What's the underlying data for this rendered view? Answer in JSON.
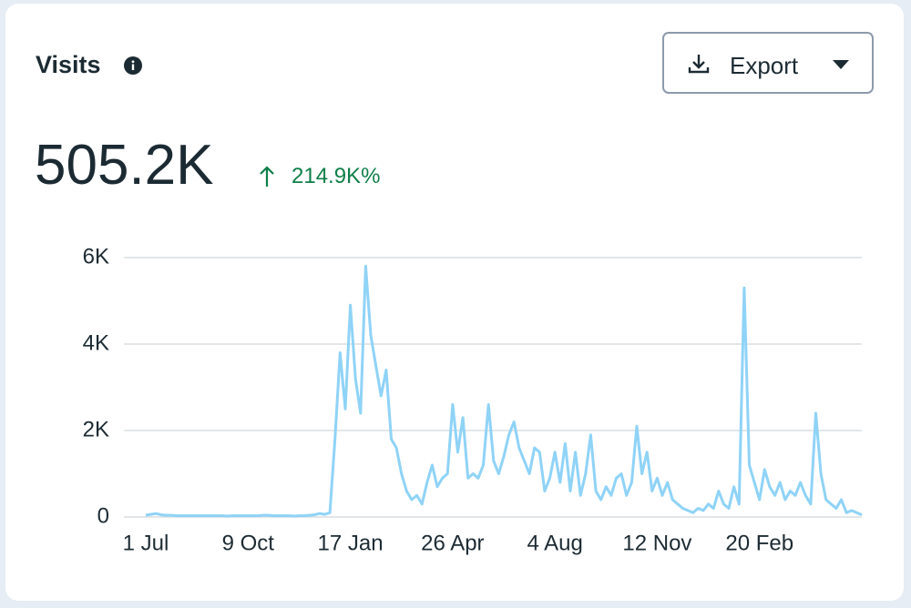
{
  "header": {
    "title": "Visits",
    "button": "Export"
  },
  "summary": {
    "total": "505.2K",
    "change": "214.9K%"
  },
  "chart_data": {
    "type": "line",
    "color": "#8fd3f7",
    "grid": true,
    "ylim": [
      0,
      6000
    ],
    "yticks": [
      0,
      {
        "value": 2000,
        "label": "2K"
      },
      {
        "value": 4000,
        "label": "4K"
      },
      {
        "value": 6000,
        "label": "6K"
      }
    ],
    "categories": [
      "1 Jul",
      null,
      null,
      null,
      null,
      null,
      null,
      null,
      null,
      null,
      null,
      null,
      null,
      null,
      null,
      null,
      null,
      null,
      null,
      null,
      "9 Oct",
      null,
      null,
      null,
      null,
      null,
      null,
      null,
      null,
      null,
      null,
      null,
      null,
      null,
      null,
      null,
      null,
      null,
      null,
      null,
      "17 Jan",
      null,
      null,
      null,
      null,
      null,
      null,
      null,
      null,
      null,
      null,
      null,
      null,
      null,
      null,
      null,
      null,
      null,
      null,
      null,
      "26 Apr",
      null,
      null,
      null,
      null,
      null,
      null,
      null,
      null,
      null,
      null,
      null,
      null,
      null,
      null,
      null,
      null,
      null,
      null,
      null,
      "4 Aug",
      null,
      null,
      null,
      null,
      null,
      null,
      null,
      null,
      null,
      null,
      null,
      null,
      null,
      null,
      null,
      null,
      null,
      null,
      null,
      "12 Nov",
      null,
      null,
      null,
      null,
      null,
      null,
      null,
      null,
      null,
      null,
      null,
      null,
      null,
      null,
      null,
      null,
      null,
      null,
      null,
      "20 Feb",
      null,
      null,
      null,
      null,
      null,
      null,
      null,
      null,
      null,
      null,
      null,
      null,
      null,
      null,
      null,
      null,
      null,
      null,
      null,
      null
    ],
    "values": [
      40,
      60,
      80,
      50,
      40,
      40,
      30,
      30,
      30,
      30,
      30,
      30,
      30,
      30,
      30,
      30,
      20,
      30,
      30,
      30,
      30,
      30,
      30,
      40,
      40,
      30,
      30,
      30,
      30,
      20,
      30,
      30,
      40,
      50,
      80,
      60,
      100,
      1800,
      3800,
      2500,
      4900,
      3200,
      2400,
      5800,
      4200,
      3500,
      2800,
      3400,
      1800,
      1600,
      1000,
      600,
      400,
      500,
      300,
      800,
      1200,
      700,
      900,
      1000,
      2600,
      1500,
      2300,
      900,
      1000,
      900,
      1200,
      2600,
      1300,
      1000,
      1400,
      1900,
      2200,
      1600,
      1300,
      1000,
      1600,
      1500,
      600,
      900,
      1500,
      800,
      1700,
      600,
      1500,
      500,
      1000,
      1900,
      600,
      400,
      700,
      500,
      900,
      1000,
      500,
      800,
      2100,
      1000,
      1500,
      600,
      900,
      500,
      800,
      400,
      300,
      200,
      150,
      100,
      200,
      150,
      300,
      200,
      600,
      300,
      200,
      700,
      300,
      5300,
      1200,
      800,
      400,
      1100,
      700,
      500,
      800,
      400,
      600,
      500,
      800,
      500,
      300,
      2400,
      1000,
      400,
      300,
      200,
      400,
      100,
      150,
      100,
      50
    ]
  }
}
